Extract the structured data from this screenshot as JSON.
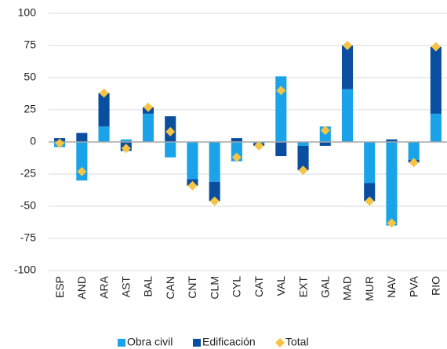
{
  "chart_data": {
    "type": "bar",
    "stacked": true,
    "categories": [
      "ESP",
      "AND",
      "ARA",
      "AST",
      "BAL",
      "CAN",
      "CNT",
      "CLM",
      "CYL",
      "CAT",
      "VAL",
      "EXT",
      "GAL",
      "MAD",
      "MUR",
      "NAV",
      "PVA",
      "RIO"
    ],
    "series": [
      {
        "name": "Obra civil",
        "type": "bar",
        "color": "#1aa3e8",
        "values": [
          -4,
          -30,
          12,
          2,
          22,
          -12,
          -29,
          -31,
          -15,
          -1,
          51,
          -3,
          12,
          41,
          -32,
          -65,
          -14,
          22
        ]
      },
      {
        "name": "Edificación",
        "type": "bar",
        "color": "#0a4ea0",
        "values": [
          3,
          7,
          26,
          -7,
          5,
          20,
          -5,
          -15,
          3,
          -2,
          -11,
          -19,
          -3,
          34,
          -14,
          2,
          -2,
          52
        ]
      },
      {
        "name": "Total",
        "type": "scatter",
        "marker": "diamond",
        "color": "#f6c343",
        "values": [
          -1,
          -23,
          38,
          -5,
          27,
          8,
          -34,
          -46,
          -12,
          -3,
          40,
          -22,
          9,
          75,
          -46,
          -63,
          -16,
          74
        ]
      }
    ],
    "ylim": [
      -100,
      100
    ],
    "yticks": [
      -100,
      -75,
      -50,
      -25,
      0,
      25,
      50,
      75,
      100
    ],
    "grid": true,
    "legend": "bottom"
  }
}
